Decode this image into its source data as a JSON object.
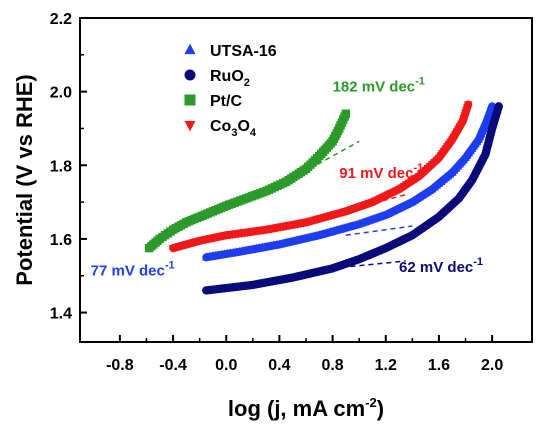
{
  "chart_data": {
    "type": "scatter",
    "xlabel": "log (j, mA cm",
    "xlabel_sup": "-2",
    "xlabel_end": ")",
    "ylabel": "Potential (V  vs  RHE)",
    "xlim": [
      -1.1,
      2.3
    ],
    "ylim": [
      1.32,
      2.2
    ],
    "x_ticks": [
      -0.8,
      -0.4,
      0.0,
      0.4,
      0.8,
      1.2,
      1.6,
      2.0
    ],
    "x_tick_labels": [
      "-0.8",
      "-0.4",
      "0.0",
      "0.4",
      "0.8",
      "1.2",
      "1.6",
      "2.0"
    ],
    "y_ticks": [
      1.4,
      1.6,
      1.8,
      2.0,
      2.2
    ],
    "y_tick_labels": [
      "1.4",
      "1.6",
      "1.8",
      "2.0",
      "2.2"
    ],
    "grid": false,
    "legend_position": "top-left",
    "series": [
      {
        "name": "UTSA-16",
        "name_parts": [
          [
            "UTSA-16",
            ""
          ]
        ],
        "marker": "triangle-up",
        "color": "#1f3df0",
        "x": [
          -0.15,
          0.1,
          0.4,
          0.7,
          1.0,
          1.2,
          1.4,
          1.55,
          1.7,
          1.8,
          1.9,
          1.96,
          2.0
        ],
        "y": [
          1.55,
          1.565,
          1.585,
          1.61,
          1.64,
          1.665,
          1.7,
          1.735,
          1.78,
          1.82,
          1.87,
          1.92,
          1.96
        ]
      },
      {
        "name": "RuO2",
        "name_parts": [
          [
            "RuO",
            ""
          ],
          [
            "2",
            "sub"
          ]
        ],
        "marker": "circle",
        "color": "#0a0a7a",
        "x": [
          -0.15,
          0.2,
          0.5,
          0.8,
          1.0,
          1.2,
          1.4,
          1.6,
          1.75,
          1.85,
          1.95,
          2.0,
          2.05
        ],
        "y": [
          1.46,
          1.475,
          1.495,
          1.52,
          1.545,
          1.575,
          1.61,
          1.66,
          1.71,
          1.76,
          1.83,
          1.9,
          1.96
        ]
      },
      {
        "name": "Pt/C",
        "name_parts": [
          [
            "Pt/C",
            ""
          ]
        ],
        "marker": "square",
        "color": "#2b9a2b",
        "x": [
          -0.58,
          -0.5,
          -0.4,
          -0.3,
          -0.2,
          -0.1,
          0.0,
          0.15,
          0.3,
          0.45,
          0.6,
          0.7,
          0.8,
          0.85,
          0.9
        ],
        "y": [
          1.575,
          1.6,
          1.625,
          1.645,
          1.66,
          1.675,
          1.69,
          1.71,
          1.73,
          1.755,
          1.79,
          1.825,
          1.865,
          1.9,
          1.94
        ]
      },
      {
        "name": "Co3O4",
        "name_parts": [
          [
            "Co",
            ""
          ],
          [
            "3",
            "sub"
          ],
          [
            "O",
            ""
          ],
          [
            "4",
            "sub"
          ]
        ],
        "marker": "triangle-down",
        "color": "#f01818",
        "x": [
          -0.4,
          -0.2,
          0.0,
          0.3,
          0.6,
          0.9,
          1.1,
          1.3,
          1.45,
          1.6,
          1.7,
          1.78,
          1.82
        ],
        "y": [
          1.575,
          1.595,
          1.61,
          1.625,
          1.645,
          1.675,
          1.7,
          1.735,
          1.77,
          1.82,
          1.87,
          1.92,
          1.965
        ]
      }
    ],
    "tafel_lines": [
      {
        "color": "#2b9a2b",
        "x": [
          0.45,
          1.0
        ],
        "y": [
          1.755,
          1.865
        ]
      },
      {
        "color": "#f01818",
        "x": [
          0.85,
          1.35
        ],
        "y": [
          1.673,
          1.72
        ]
      },
      {
        "color": "#1f3df0",
        "x": [
          0.9,
          1.4
        ],
        "y": [
          1.61,
          1.635
        ]
      },
      {
        "color": "#0a0a7a",
        "x": [
          0.8,
          1.35
        ],
        "y": [
          1.52,
          1.54
        ]
      }
    ],
    "annotations": [
      {
        "text": "182 mV dec",
        "sup": "-1",
        "color": "#2b9a2b",
        "x": 0.8,
        "y": 2.0
      },
      {
        "text": "91 mV dec",
        "sup": "-1",
        "color": "#f01818",
        "x": 0.85,
        "y": 1.765
      },
      {
        "text": "77 mV dec",
        "sup": "-1",
        "color": "#1f3df0",
        "x": -1.02,
        "y": 1.5
      },
      {
        "text": "62 mV dec",
        "sup": "-1",
        "color": "#0a0a7a",
        "x": 1.3,
        "y": 1.51
      }
    ]
  }
}
